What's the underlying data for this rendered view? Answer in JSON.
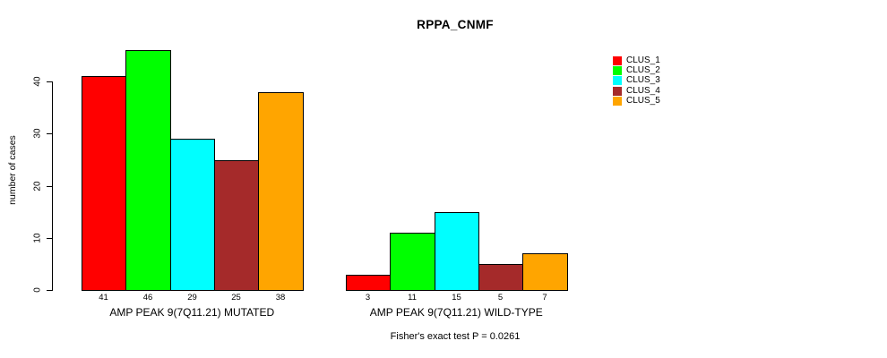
{
  "chart_data": {
    "type": "bar",
    "title": "RPPA_CNMF",
    "ylabel": "number of cases",
    "xlabel": "",
    "ylim": [
      0,
      46
    ],
    "yticks": [
      0,
      10,
      20,
      30,
      40
    ],
    "grid": false,
    "legend_position": "top-right",
    "legend": [
      {
        "label": "CLUS_1",
        "color": "#FF0000"
      },
      {
        "label": "CLUS_2",
        "color": "#00FF00"
      },
      {
        "label": "CLUS_3",
        "color": "#00FFFF"
      },
      {
        "label": "CLUS_4",
        "color": "#A52A2A"
      },
      {
        "label": "CLUS_5",
        "color": "#FFA500"
      }
    ],
    "groups": [
      {
        "label": "AMP PEAK 9(7Q11.21) MUTATED",
        "values": [
          41,
          46,
          29,
          25,
          38
        ]
      },
      {
        "label": "AMP PEAK 9(7Q11.21) WILD-TYPE",
        "values": [
          3,
          11,
          15,
          5,
          7
        ]
      }
    ],
    "footnote": "Fisher's exact test P = 0.0261"
  }
}
